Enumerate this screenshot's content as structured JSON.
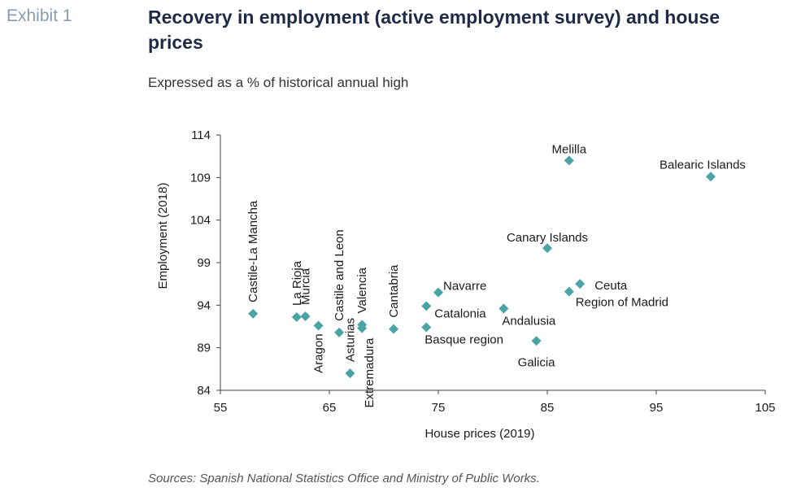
{
  "header": {
    "exhibit_label": "Exhibit 1",
    "title": "Recovery in employment (active employment survey) and house prices",
    "subtitle": "Expressed as a % of historical annual high"
  },
  "footer": {
    "source": "Sources: Spanish National Statistics Office and Ministry of Public Works."
  },
  "chart_data": {
    "type": "scatter",
    "xlabel": "House prices (2019)",
    "ylabel": "Employment (2018)",
    "xlim": [
      55,
      105
    ],
    "ylim": [
      84,
      114
    ],
    "xticks": [
      55,
      65,
      75,
      85,
      95,
      105
    ],
    "yticks": [
      84,
      89,
      94,
      99,
      104,
      109,
      114
    ],
    "grid": false,
    "marker_color": "#4aa3a5",
    "points": [
      {
        "label": "Castile-La Mancha",
        "x": 58.0,
        "y": 93.0
      },
      {
        "label": "La Rioja",
        "x": 62.0,
        "y": 92.6
      },
      {
        "label": "Murcia",
        "x": 62.8,
        "y": 92.7
      },
      {
        "label": "Aragon",
        "x": 64.0,
        "y": 91.6
      },
      {
        "label": "Castile and Leon",
        "x": 65.9,
        "y": 90.8
      },
      {
        "label": "Asturias",
        "x": 66.9,
        "y": 86.0
      },
      {
        "label": "Valencia",
        "x": 68.0,
        "y": 91.7
      },
      {
        "label": "Extremadura",
        "x": 68.0,
        "y": 91.3
      },
      {
        "label": "Cantabria",
        "x": 70.9,
        "y": 91.2
      },
      {
        "label": "Navarre",
        "x": 75.0,
        "y": 95.5
      },
      {
        "label": "Catalonia",
        "x": 73.9,
        "y": 93.9
      },
      {
        "label": "Basque region",
        "x": 73.9,
        "y": 91.4
      },
      {
        "label": "Andalusia",
        "x": 81.0,
        "y": 93.6
      },
      {
        "label": "Galicia",
        "x": 84.0,
        "y": 89.8
      },
      {
        "label": "Canary Islands",
        "x": 85.0,
        "y": 100.7
      },
      {
        "label": "Region of Madrid",
        "x": 87.0,
        "y": 95.6
      },
      {
        "label": "Ceuta",
        "x": 88.0,
        "y": 96.5
      },
      {
        "label": "Melilla",
        "x": 87.0,
        "y": 111.0
      },
      {
        "label": "Balearic Islands",
        "x": 100.0,
        "y": 109.1
      }
    ]
  }
}
